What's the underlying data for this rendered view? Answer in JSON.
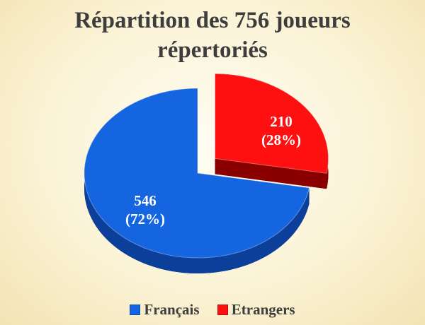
{
  "chart_data": {
    "type": "pie",
    "title_lines": [
      "Répartition des 756 joueurs",
      "répertoriés"
    ],
    "slices": [
      {
        "label": "Français",
        "value": 546,
        "percent": "72%",
        "color": "#1565e0",
        "side_color": "#0b3f9a"
      },
      {
        "label": "Etrangers",
        "value": 210,
        "percent": "28%",
        "color": "#ff1010",
        "side_color": "#8a0000"
      }
    ],
    "legend_position": "bottom"
  }
}
